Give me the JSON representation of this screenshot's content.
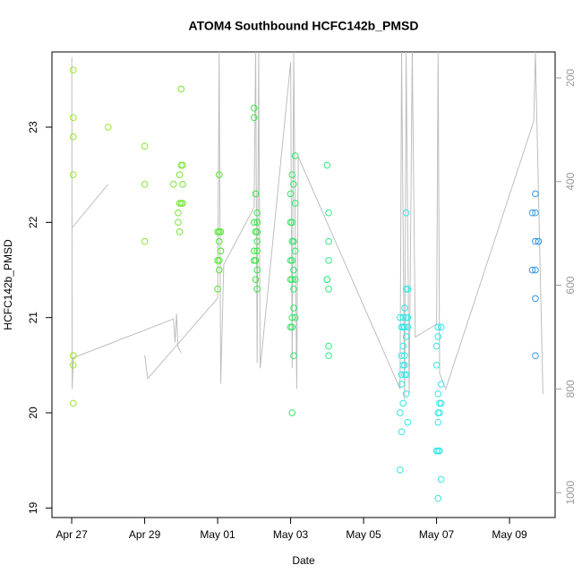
{
  "chart_data": {
    "type": "scatter",
    "title": "ATOM4 Southbound HCFC142b_PMSD",
    "xlabel": "Date",
    "ylabel": "HCFC142b_PMSD",
    "xlim": [
      "Apr 26 11:00",
      "May 10 06:00"
    ],
    "xticks": [
      "Apr 27",
      "Apr 29",
      "May 01",
      "May 03",
      "May 05",
      "May 07",
      "May 09"
    ],
    "ylim": [
      18.9,
      23.79
    ],
    "yticks": [
      19,
      20,
      21,
      22,
      23
    ],
    "y2lim": [
      1048,
      150
    ],
    "y2ticks": [
      200,
      400,
      600,
      800,
      1000
    ],
    "series": [
      {
        "color": "#99e633",
        "x": [
          "Apr 27 01:00",
          "Apr 27 01:00",
          "Apr 27 01:00",
          "Apr 27 01:00",
          "Apr 27 01:00",
          "Apr 27 01:00",
          "Apr 27 01:00",
          "Apr 27 01:00"
        ],
        "values": [
          23.6,
          23.1,
          22.9,
          22.5,
          20.6,
          20.6,
          20.5,
          20.1
        ]
      },
      {
        "color": "#99e633",
        "x": [
          "Apr 28 00:00"
        ],
        "values": [
          23.0
        ]
      },
      {
        "color": "#8ae633",
        "x": [
          "Apr 29 00:00",
          "Apr 29 00:00",
          "Apr 29 00:00"
        ],
        "values": [
          22.8,
          22.4,
          21.8
        ]
      },
      {
        "color": "#77e633",
        "x": [
          "Apr 29 19:00",
          "Apr 29 22:00",
          "Apr 29 22:00",
          "Apr 29 23:00",
          "Apr 29 23:00",
          "Apr 29 23:00",
          "Apr 30 00:00",
          "Apr 30 00:00",
          "Apr 30 00:00",
          "Apr 30 01:00",
          "Apr 30 01:00",
          "Apr 30 01:00"
        ],
        "values": [
          22.4,
          22.1,
          22.0,
          22.5,
          22.2,
          21.9,
          23.4,
          22.6,
          22.2,
          22.6,
          22.4,
          22.2
        ]
      },
      {
        "color": "#55e633",
        "x": [
          "May 01 00:00",
          "May 01 00:00",
          "May 01 00:00",
          "May 01 01:00",
          "May 01 01:00",
          "May 01 01:00",
          "May 01 01:00",
          "May 01 01:00",
          "May 01 02:00",
          "May 01 02:00",
          "May 01 02:00"
        ],
        "values": [
          21.9,
          21.6,
          21.3,
          22.5,
          21.9,
          21.8,
          21.6,
          21.5,
          21.9,
          21.7,
          21.7
        ]
      },
      {
        "color": "#33e63d",
        "x": [
          "May 02 00:00",
          "May 02 00:00",
          "May 02 00:00",
          "May 02 00:00",
          "May 02 00:00",
          "May 02 01:00",
          "May 02 01:00",
          "May 02 01:00",
          "May 02 01:00",
          "May 02 02:00",
          "May 02 02:00",
          "May 02 02:00",
          "May 02 02:00",
          "May 02 02:00",
          "May 02 02:00",
          "May 02 02:00"
        ],
        "values": [
          23.2,
          23.1,
          22.0,
          21.7,
          21.6,
          22.3,
          21.9,
          21.6,
          21.4,
          22.1,
          22.0,
          21.9,
          21.8,
          21.7,
          21.5,
          21.3
        ]
      },
      {
        "color": "#33e666",
        "x": [
          "May 03 00:00",
          "May 03 00:00",
          "May 03 00:00",
          "May 03 00:00",
          "May 03 00:00",
          "May 03 01:00",
          "May 03 01:00",
          "May 03 01:00",
          "May 03 01:00",
          "May 03 01:00",
          "May 03 01:00",
          "May 03 01:00",
          "May 03 01:00",
          "May 03 02:00",
          "May 03 02:00",
          "May 03 02:00",
          "May 03 02:00",
          "May 03 02:00",
          "May 03 02:00",
          "May 03 03:00",
          "May 03 03:00",
          "May 03 03:00",
          "May 03 03:00",
          "May 03 03:00"
        ],
        "values": [
          22.3,
          22.0,
          21.6,
          21.4,
          20.9,
          22.5,
          22.0,
          21.8,
          21.6,
          21.4,
          21.0,
          20.0,
          20.9,
          22.4,
          21.8,
          21.5,
          21.3,
          21.1,
          20.6,
          22.7,
          22.2,
          21.7,
          21.4,
          21.0
        ]
      },
      {
        "color": "#33e680",
        "x": [
          "May 04 00:00",
          "May 04 00:00",
          "May 04 00:00",
          "May 04 01:00",
          "May 04 01:00",
          "May 04 01:00",
          "May 04 01:00",
          "May 04 01:00",
          "May 04 01:00"
        ],
        "values": [
          22.6,
          21.4,
          21.4,
          22.1,
          21.8,
          21.6,
          21.3,
          20.7,
          20.6
        ]
      },
      {
        "color": "#33e6e6",
        "x": [
          "May 06 00:00",
          "May 06 00:00",
          "May 06 00:00",
          "May 06 01:00",
          "May 06 01:00",
          "May 06 01:00",
          "May 06 01:00",
          "May 06 01:00",
          "May 06 02:00",
          "May 06 02:00",
          "May 06 02:00",
          "May 06 02:00",
          "May 06 02:00",
          "May 06 03:00",
          "May 06 03:00",
          "May 06 03:00",
          "May 06 03:00",
          "May 06 03:00",
          "May 06 04:00",
          "May 06 04:00",
          "May 06 04:00",
          "May 06 04:00",
          "May 06 04:00",
          "May 06 04:00",
          "May 06 05:00",
          "May 06 05:00",
          "May 06 05:00",
          "May 06 05:00"
        ],
        "values": [
          21.0,
          20.0,
          19.4,
          20.9,
          20.6,
          20.4,
          20.3,
          19.8,
          21.0,
          20.9,
          20.7,
          20.5,
          20.1,
          21.1,
          20.9,
          20.6,
          20.4,
          20.5,
          22.1,
          21.3,
          21.0,
          20.8,
          20.4,
          20.2,
          21.3,
          21.0,
          20.9,
          19.9
        ]
      },
      {
        "color": "#33e6e6",
        "x": [
          "May 07 00:00",
          "May 07 00:00",
          "May 07 00:00",
          "May 07 01:00",
          "May 07 01:00",
          "May 07 01:00",
          "May 07 01:00",
          "May 07 01:00",
          "May 07 01:00",
          "May 07 01:00",
          "May 07 02:00",
          "May 07 02:00",
          "May 07 02:00",
          "May 07 03:00",
          "May 07 03:00",
          "May 07 03:00",
          "May 07 03:00"
        ],
        "values": [
          20.7,
          20.5,
          19.6,
          20.9,
          20.8,
          20.2,
          20.0,
          19.9,
          19.6,
          19.1,
          20.1,
          20.0,
          19.6,
          20.9,
          20.3,
          20.1,
          19.3
        ]
      },
      {
        "color": "#3399e6",
        "x": [
          "May 09 15:00",
          "May 09 15:00",
          "May 09 17:00",
          "May 09 17:00",
          "May 09 17:00",
          "May 09 17:00",
          "May 09 17:00",
          "May 09 17:00",
          "May 09 19:00",
          "May 09 19:00"
        ],
        "values": [
          21.5,
          22.1,
          22.3,
          22.1,
          21.5,
          21.2,
          20.6,
          21.8,
          21.8,
          21.8
        ]
      }
    ],
    "line": {
      "axis": "y2",
      "color": "#bebebe",
      "x": [
        "Apr 27 00:00",
        "Apr 28 00:00",
        "Apr 28 00:00",
        "Apr 27 00:05",
        "Apr 27 00:20",
        "Apr 27 01:00",
        "Apr 29 19:00",
        "Apr 29 20:00",
        "Apr 29 21:00",
        "Apr 29 22:00",
        "Apr 30 00:00",
        "Apr 30 00:00",
        "Apr 29 00:00",
        "Apr 29 02:00",
        "May 01 00:00",
        "May 01 01:00",
        "May 01 02:00",
        "May 01 04:00",
        "May 02 00:00",
        "May 02 01:00",
        "May 02 02:00",
        "May 02 03:00",
        "May 02 04:00",
        "May 03 00:00",
        "May 03 01:00",
        "May 03 02:00",
        "May 03 04:00",
        "May 03 05:00",
        "May 06 00:00",
        "May 06 01:00",
        "May 06 03:00",
        "May 06 04:00",
        "May 06 06:00",
        "May 06 08:00",
        "May 06 10:00",
        "May 07 00:00",
        "May 07 01:00",
        "May 07 02:00",
        "May 07 06:00",
        "May 09 16:00",
        "May 09 17:00",
        "May 09 22:00"
      ],
      "values": [
        490,
        405,
        null,
        160,
        800,
        740,
        665,
        710,
        655,
        720,
        730,
        null,
        735,
        780,
        625,
        150,
        790,
        560,
        450,
        150,
        750,
        150,
        760,
        170,
        760,
        150,
        800,
        352,
        800,
        150,
        820,
        150,
        810,
        150,
        700,
        675,
        150,
        770,
        800,
        283,
        150,
        810
      ]
    }
  }
}
